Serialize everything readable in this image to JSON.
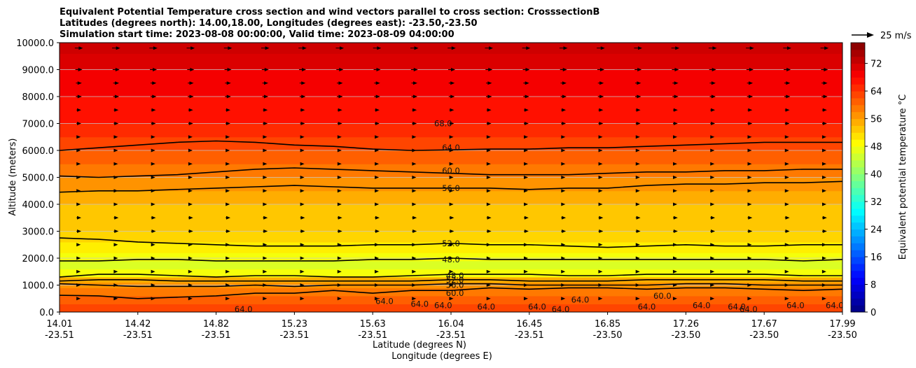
{
  "chart_data": {
    "type": "heatmap",
    "title_lines": [
      "Equivalent Potential Temperature cross section and wind vectors parallel to cross section: CrosssectionB",
      "Latitudes (degrees north): 14.00,18.00, Longitudes (degrees east): -23.50,-23.50",
      "Simulation start time: 2023-08-08 00:00:00, Valid time: 2023-08-09 04:00:00"
    ],
    "ylabel": "Altitude (meters)",
    "xlabel_lat": "Latitude (degrees N)",
    "xlabel_lon": "Longitude (degrees E)",
    "ylim": [
      0,
      10000
    ],
    "y_ticks": [
      0,
      1000,
      2000,
      3000,
      4000,
      5000,
      6000,
      7000,
      8000,
      9000,
      10000
    ],
    "y_tick_labels": [
      "0.0",
      "1000.0",
      "2000.0",
      "3000.0",
      "4000.0",
      "5000.0",
      "6000.0",
      "7000.0",
      "8000.0",
      "9000.0",
      "10000.0"
    ],
    "x_ticks": [
      {
        "lat": "14.01",
        "lon": "-23.51",
        "pos": 0.0
      },
      {
        "lat": "14.42",
        "lon": "-23.51",
        "pos": 0.1
      },
      {
        "lat": "14.82",
        "lon": "-23.51",
        "pos": 0.2
      },
      {
        "lat": "15.23",
        "lon": "-23.51",
        "pos": 0.3
      },
      {
        "lat": "15.63",
        "lon": "-23.51",
        "pos": 0.4
      },
      {
        "lat": "16.04",
        "lon": "-23.51",
        "pos": 0.5
      },
      {
        "lat": "16.45",
        "lon": "-23.51",
        "pos": 0.6
      },
      {
        "lat": "16.85",
        "lon": "-23.50",
        "pos": 0.7
      },
      {
        "lat": "17.26",
        "lon": "-23.50",
        "pos": 0.8
      },
      {
        "lat": "17.67",
        "lon": "-23.50",
        "pos": 0.9
      },
      {
        "lat": "17.99",
        "lon": "-23.50",
        "pos": 1.0
      }
    ],
    "colorbar": {
      "label": "Equivalent potential temperature °C",
      "range": [
        0,
        78
      ],
      "ticks": [
        0,
        8,
        16,
        24,
        32,
        40,
        48,
        56,
        64,
        72
      ],
      "tick_labels": [
        "0",
        "8",
        "16",
        "24",
        "32",
        "40",
        "48",
        "56",
        "64",
        "72"
      ],
      "colormap": "jet"
    },
    "bands": [
      {
        "alt": 0,
        "theta": 63
      },
      {
        "alt": 300,
        "theta": 61
      },
      {
        "alt": 600,
        "theta": 59
      },
      {
        "alt": 900,
        "theta": 57
      },
      {
        "alt": 1100,
        "theta": 55
      },
      {
        "alt": 1300,
        "theta": 48
      },
      {
        "alt": 1600,
        "theta": 46
      },
      {
        "alt": 1900,
        "theta": 48
      },
      {
        "alt": 2200,
        "theta": 50
      },
      {
        "alt": 2600,
        "theta": 52
      },
      {
        "alt": 3000,
        "theta": 53
      },
      {
        "alt": 3500,
        "theta": 53
      },
      {
        "alt": 4000,
        "theta": 55
      },
      {
        "alt": 4500,
        "theta": 57
      },
      {
        "alt": 5000,
        "theta": 59
      },
      {
        "alt": 5500,
        "theta": 61
      },
      {
        "alt": 6000,
        "theta": 63
      },
      {
        "alt": 6500,
        "theta": 65
      },
      {
        "alt": 7000,
        "theta": 67
      },
      {
        "alt": 8000,
        "theta": 69
      },
      {
        "alt": 9000,
        "theta": 71
      },
      {
        "alt": 9600,
        "theta": 72
      }
    ],
    "contours": [
      {
        "level": 64.0,
        "label": "64.0",
        "alt": [
          6000,
          6100,
          6200,
          6300,
          6350,
          6300,
          6200,
          6150,
          6050,
          6000,
          6020,
          6050,
          6050,
          6100,
          6100,
          6150,
          6200,
          6250,
          6300,
          6300,
          6300
        ]
      },
      {
        "level": 60.0,
        "label": "60.0",
        "alt": [
          5050,
          5000,
          5050,
          5100,
          5200,
          5300,
          5350,
          5300,
          5250,
          5200,
          5150,
          5100,
          5100,
          5100,
          5150,
          5200,
          5200,
          5250,
          5250,
          5300,
          5300
        ]
      },
      {
        "level": 56.0,
        "label": "56.0",
        "alt": [
          4450,
          4500,
          4500,
          4550,
          4600,
          4650,
          4700,
          4650,
          4600,
          4600,
          4600,
          4600,
          4550,
          4600,
          4600,
          4700,
          4750,
          4750,
          4800,
          4800,
          4850
        ]
      },
      {
        "level": 52.0,
        "label": "52.0",
        "alt": [
          2750,
          2700,
          2600,
          2550,
          2500,
          2450,
          2450,
          2450,
          2500,
          2500,
          2550,
          2500,
          2500,
          2450,
          2400,
          2450,
          2500,
          2450,
          2450,
          2500,
          2500
        ]
      },
      {
        "level": 48.0,
        "label": "48.0",
        "alt": [
          1900,
          1900,
          1950,
          1950,
          1900,
          1900,
          1900,
          1900,
          1950,
          1950,
          2000,
          1950,
          1950,
          1950,
          1950,
          1950,
          1950,
          1950,
          1950,
          1900,
          1950
        ]
      },
      {
        "level": 48.0,
        "label": "48.0",
        "alt": [
          1300,
          1400,
          1400,
          1350,
          1300,
          1350,
          1350,
          1300,
          1300,
          1350,
          1400,
          1400,
          1400,
          1350,
          1350,
          1400,
          1400,
          1400,
          1400,
          1350,
          1350
        ]
      },
      {
        "level": 52.0,
        "label": "52.0",
        "alt": [
          1150,
          1200,
          1200,
          1150,
          1150,
          1150,
          1150,
          1150,
          1150,
          1150,
          1200,
          1200,
          1150,
          1150,
          1150,
          1200,
          1200,
          1200,
          1200,
          1150,
          1150
        ]
      },
      {
        "level": 56.0,
        "label": "56.0",
        "alt": [
          1050,
          1000,
          950,
          950,
          950,
          1000,
          950,
          1000,
          1000,
          1000,
          1050,
          1050,
          1000,
          1000,
          1000,
          1000,
          1050,
          1050,
          1000,
          1000,
          1000
        ]
      },
      {
        "level": 60.0,
        "label": "60.0",
        "alt": [
          620,
          600,
          500,
          550,
          600,
          700,
          700,
          800,
          700,
          800,
          800,
          900,
          850,
          900,
          900,
          850,
          900,
          900,
          850,
          800,
          850
        ]
      }
    ],
    "contour_labels": [
      {
        "text": "68.0",
        "pos": 0.49,
        "alt": 7000
      },
      {
        "text": "64.0",
        "pos": 0.5,
        "alt": 6100
      },
      {
        "text": "60.0",
        "pos": 0.5,
        "alt": 5250
      },
      {
        "text": "56.0",
        "pos": 0.5,
        "alt": 4600
      },
      {
        "text": "52.0",
        "pos": 0.5,
        "alt": 2550
      },
      {
        "text": "48.0",
        "pos": 0.5,
        "alt": 1950
      },
      {
        "text": "48.0",
        "pos": 0.505,
        "alt": 1350
      },
      {
        "text": "52.0",
        "pos": 0.505,
        "alt": 1200
      },
      {
        "text": "56.0",
        "pos": 0.505,
        "alt": 1000
      },
      {
        "text": "60.0",
        "pos": 0.505,
        "alt": 700
      },
      {
        "text": "64.0",
        "pos": 0.235,
        "alt": 100
      },
      {
        "text": "64.0",
        "pos": 0.415,
        "alt": 400
      },
      {
        "text": "64.0",
        "pos": 0.46,
        "alt": 300
      },
      {
        "text": "64.0",
        "pos": 0.49,
        "alt": 250
      },
      {
        "text": "64.0",
        "pos": 0.545,
        "alt": 200
      },
      {
        "text": "64.0",
        "pos": 0.61,
        "alt": 200
      },
      {
        "text": "64.0",
        "pos": 0.64,
        "alt": 100
      },
      {
        "text": "64.0",
        "pos": 0.665,
        "alt": 450
      },
      {
        "text": "64.0",
        "pos": 0.75,
        "alt": 200
      },
      {
        "text": "60.0",
        "pos": 0.77,
        "alt": 600
      },
      {
        "text": "64.0",
        "pos": 0.82,
        "alt": 250
      },
      {
        "text": "64.0",
        "pos": 0.865,
        "alt": 200
      },
      {
        "text": "64.0",
        "pos": 0.88,
        "alt": 100
      },
      {
        "text": "64.0",
        "pos": 0.94,
        "alt": 250
      },
      {
        "text": "64.0",
        "pos": 0.99,
        "alt": 250
      }
    ],
    "wind_reference": {
      "label": "25 m/s",
      "speed": 25
    },
    "wind_rows": [
      {
        "alt": 9800,
        "speed": 6
      },
      {
        "alt": 9000,
        "speed": 5
      },
      {
        "alt": 8500,
        "speed": 4
      },
      {
        "alt": 8000,
        "speed": 4
      },
      {
        "alt": 7500,
        "speed": 3
      },
      {
        "alt": 7000,
        "speed": 3
      },
      {
        "alt": 6500,
        "speed": 2
      },
      {
        "alt": 6000,
        "speed": 2
      },
      {
        "alt": 5500,
        "speed": 2
      },
      {
        "alt": 5000,
        "speed": 2
      },
      {
        "alt": 4500,
        "speed": 2
      },
      {
        "alt": 4000,
        "speed": 2
      },
      {
        "alt": 3500,
        "speed": 3
      },
      {
        "alt": 3000,
        "speed": 3
      },
      {
        "alt": 2500,
        "speed": 2
      },
      {
        "alt": 2000,
        "speed": 2
      },
      {
        "alt": 1500,
        "speed": 1
      },
      {
        "alt": 1000,
        "speed": 1
      },
      {
        "alt": 500,
        "speed": 1
      }
    ]
  }
}
